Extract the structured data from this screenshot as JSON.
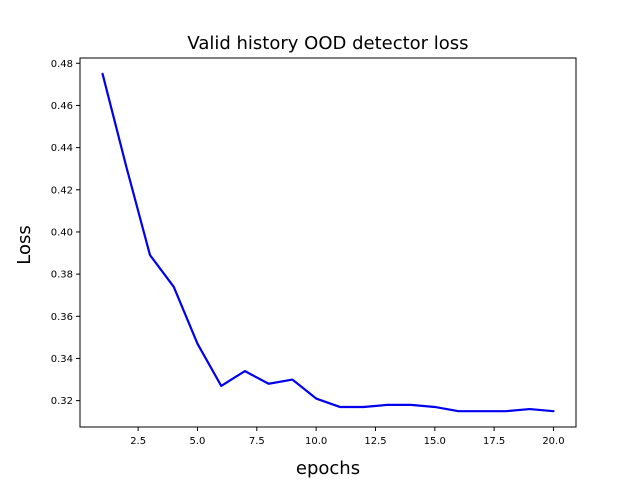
{
  "chart_data": {
    "type": "line",
    "title": "Valid history OOD detector loss",
    "xlabel": "epochs",
    "ylabel": "Loss",
    "xlim": [
      0.05,
      20.95
    ],
    "ylim": [
      0.3075,
      0.4825
    ],
    "xticks": [
      2.5,
      5.0,
      7.5,
      10.0,
      12.5,
      15.0,
      17.5,
      20.0
    ],
    "xtick_labels": [
      "2.5",
      "5.0",
      "7.5",
      "10.0",
      "12.5",
      "15.0",
      "17.5",
      "20.0"
    ],
    "yticks": [
      0.32,
      0.34,
      0.36,
      0.38,
      0.4,
      0.42,
      0.44,
      0.46,
      0.48
    ],
    "ytick_labels": [
      "0.32",
      "0.34",
      "0.36",
      "0.38",
      "0.40",
      "0.42",
      "0.44",
      "0.46",
      "0.48"
    ],
    "grid": false,
    "line_color": "#0000ee",
    "series": [
      {
        "x": [
          1,
          2,
          3,
          4,
          5,
          6,
          7,
          8,
          9,
          10,
          11,
          12,
          13,
          14,
          15,
          16,
          17,
          18,
          19,
          20
        ],
        "values": [
          0.475,
          0.431,
          0.389,
          0.374,
          0.347,
          0.327,
          0.334,
          0.328,
          0.33,
          0.321,
          0.317,
          0.317,
          0.318,
          0.318,
          0.317,
          0.315,
          0.315,
          0.315,
          0.316,
          0.315
        ]
      }
    ]
  }
}
